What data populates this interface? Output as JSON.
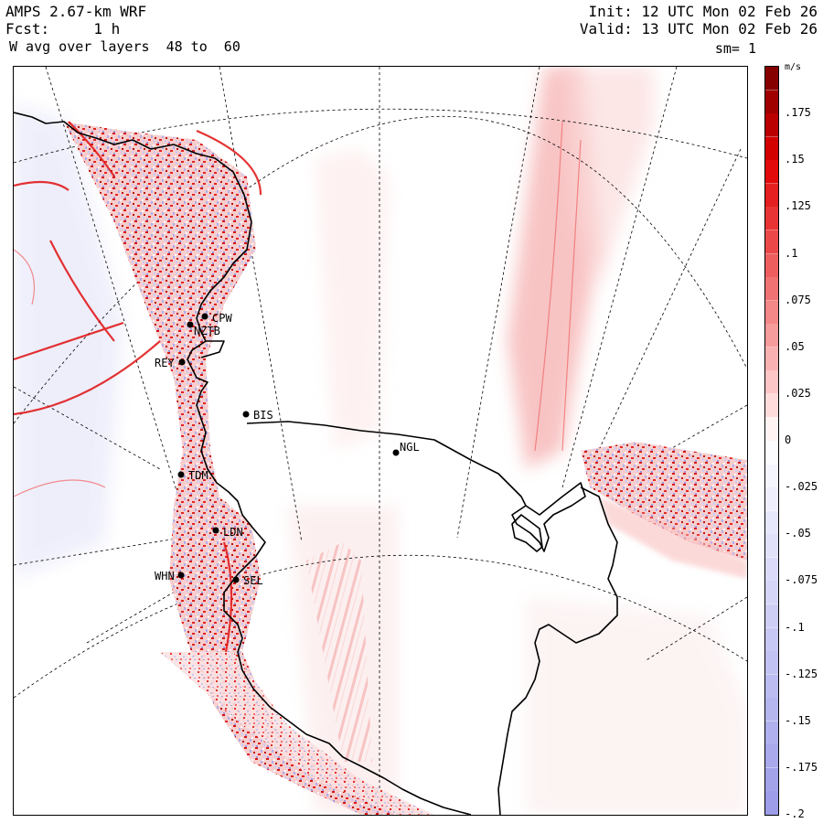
{
  "header": {
    "line1_left": "AMPS 2.67-km WRF",
    "line2_left": "Fcst:     1 h",
    "line3_left": "W avg over layers  48 to  60",
    "line1_right": "Init: 12 UTC Mon 02 Feb 26",
    "line2_right": "Valid: 13 UTC Mon 02 Feb 26",
    "smoothing": "sm= 1"
  },
  "colorbar": {
    "units": "m/s",
    "labels": [
      ".175",
      ".15",
      ".125",
      ".1",
      ".075",
      ".05",
      ".025",
      "0",
      "-.025",
      "-.05",
      "-.075",
      "-.1",
      "-.125",
      "-.15",
      "-.175",
      "-.2"
    ],
    "label_values": [
      0.175,
      0.15,
      0.125,
      0.1,
      0.075,
      0.05,
      0.025,
      0,
      -0.025,
      -0.05,
      -0.075,
      -0.1,
      -0.125,
      -0.15,
      -0.175,
      -0.2
    ],
    "min": -0.2,
    "max": 0.2,
    "colors": {
      "strong_positive": "#7a0000",
      "positive": "#e00000",
      "weak_positive": "#ffd0d0",
      "zero": "#ffffff",
      "weak_negative": "#e4e4fb",
      "negative": "#9a9ae8"
    }
  },
  "stations": [
    {
      "code": "CPW"
    },
    {
      "code": "NZTB"
    },
    {
      "code": "REY"
    },
    {
      "code": "BIS"
    },
    {
      "code": "NGL"
    },
    {
      "code": "TDM"
    },
    {
      "code": "LDN"
    },
    {
      "code": "WHN"
    },
    {
      "code": "SEL"
    }
  ]
}
